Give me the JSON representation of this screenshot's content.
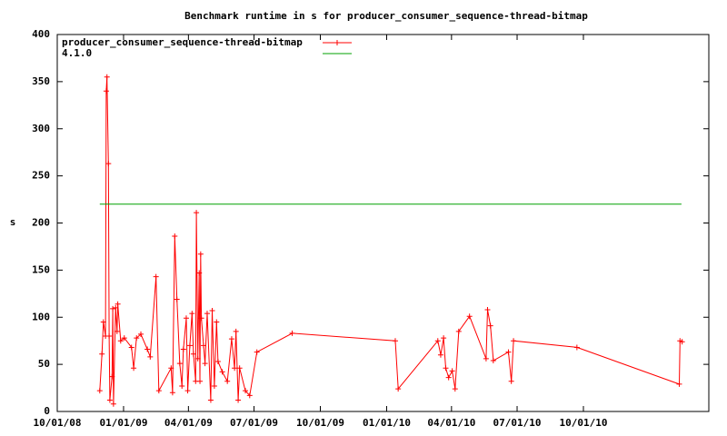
{
  "chart_data": {
    "type": "line",
    "title": "Benchmark runtime in s for producer_consumer_sequence-thread-bitmap",
    "y_label": "s",
    "xlim": [
      "2008-10-01",
      "2011-03-24"
    ],
    "xticks": [
      {
        "value": "2008-10-01",
        "label": "10/01/08"
      },
      {
        "value": "2009-01-01",
        "label": "01/01/09"
      },
      {
        "value": "2009-04-01",
        "label": "04/01/09"
      },
      {
        "value": "2009-07-01",
        "label": "07/01/09"
      },
      {
        "value": "2009-10-01",
        "label": "10/01/09"
      },
      {
        "value": "2010-01-01",
        "label": "01/01/10"
      },
      {
        "value": "2010-04-01",
        "label": "04/01/10"
      },
      {
        "value": "2010-07-01",
        "label": "07/01/10"
      },
      {
        "value": "2010-10-01",
        "label": "10/01/10"
      }
    ],
    "ylim": [
      0,
      400
    ],
    "yticks": [
      0,
      50,
      100,
      150,
      200,
      250,
      300,
      350,
      400
    ],
    "legend": "top-left",
    "series": [
      {
        "name": "producer_consumer_sequence-thread-bitmap",
        "color": "#ff0000",
        "markers": true,
        "x": [
          "2008-11-29",
          "2008-12-02",
          "2008-12-04",
          "2008-12-07",
          "2008-12-08",
          "2008-12-09",
          "2008-12-11",
          "2008-12-12",
          "2008-12-13",
          "2008-12-16",
          "2008-12-17",
          "2008-12-18",
          "2008-12-21",
          "2008-12-23",
          "2008-12-24",
          "2008-12-28",
          "2009-01-02",
          "2009-01-12",
          "2009-01-15",
          "2009-01-19",
          "2009-01-25",
          "2009-02-03",
          "2009-02-07",
          "2009-02-15",
          "2009-02-19",
          "2009-03-08",
          "2009-03-10",
          "2009-03-13",
          "2009-03-16",
          "2009-03-20",
          "2009-03-23",
          "2009-03-25",
          "2009-03-29",
          "2009-03-31",
          "2009-04-03",
          "2009-04-06",
          "2009-04-08",
          "2009-04-11",
          "2009-04-12",
          "2009-04-14",
          "2009-04-16",
          "2009-04-17",
          "2009-04-18",
          "2009-04-19",
          "2009-04-22",
          "2009-04-24",
          "2009-04-27",
          "2009-05-02",
          "2009-05-04",
          "2009-05-07",
          "2009-05-10",
          "2009-05-12",
          "2009-05-18",
          "2009-05-25",
          "2009-05-31",
          "2009-06-04",
          "2009-06-06",
          "2009-06-09",
          "2009-06-11",
          "2009-06-19",
          "2009-06-25",
          "2009-07-05",
          "2009-08-23",
          "2010-01-13",
          "2010-01-17",
          "2010-03-13",
          "2010-03-17",
          "2010-03-21",
          "2010-03-24",
          "2010-03-28",
          "2010-04-02",
          "2010-04-06",
          "2010-04-11",
          "2010-04-26",
          "2010-05-19",
          "2010-05-21",
          "2010-05-25",
          "2010-05-29",
          "2010-06-19",
          "2010-06-23",
          "2010-06-26",
          "2010-09-22",
          "2011-02-11",
          "2011-02-12",
          "2011-02-15"
        ],
        "values": [
          22,
          61,
          95,
          80,
          340,
          355,
          263,
          80,
          12,
          37,
          109,
          8,
          110,
          85,
          114,
          75,
          78,
          68,
          46,
          78,
          82,
          66,
          58,
          143,
          22,
          46,
          20,
          186,
          119,
          51,
          27,
          66,
          99,
          22,
          70,
          104,
          61,
          32,
          211,
          56,
          147,
          32,
          167,
          99,
          70,
          51,
          104,
          12,
          107,
          27,
          95,
          53,
          42,
          32,
          77,
          46,
          85,
          12,
          46,
          22,
          17,
          63,
          83,
          75,
          24,
          75,
          60,
          78,
          46,
          36,
          43,
          24,
          85,
          101,
          56,
          108,
          91,
          54,
          63,
          32,
          75,
          68,
          29,
          75,
          74
        ]
      },
      {
        "name": "4.1.0",
        "color": "#00a000",
        "markers": false,
        "x": [
          "2008-11-29",
          "2011-02-14"
        ],
        "values": [
          220,
          220
        ]
      }
    ]
  }
}
